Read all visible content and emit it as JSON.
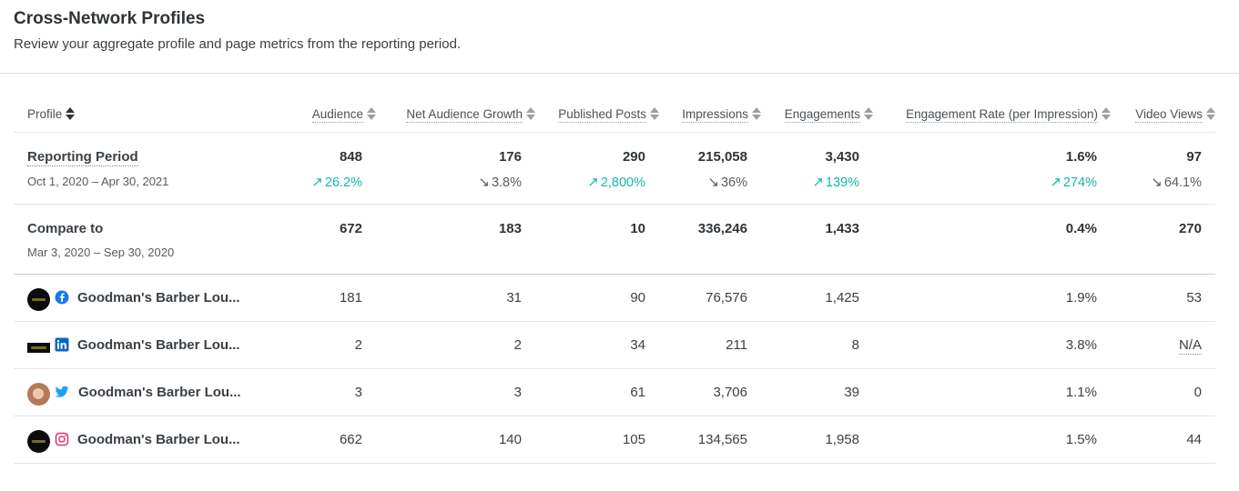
{
  "header": {
    "title": "Cross-Network Profiles",
    "subtitle": "Review your aggregate profile and page metrics from the reporting period."
  },
  "columns": [
    {
      "key": "profile",
      "label": "Profile"
    },
    {
      "key": "audience",
      "label": "Audience"
    },
    {
      "key": "growth",
      "label": "Net Audience Growth"
    },
    {
      "key": "posts",
      "label": "Published Posts"
    },
    {
      "key": "impressions",
      "label": "Impressions"
    },
    {
      "key": "engagements",
      "label": "Engagements"
    },
    {
      "key": "rate",
      "label": "Engagement Rate (per Impression)"
    },
    {
      "key": "video",
      "label": "Video Views"
    }
  ],
  "reporting": {
    "label": "Reporting Period",
    "date": "Oct 1, 2020 – Apr 30, 2021",
    "values": {
      "audience": "848",
      "growth": "176",
      "posts": "290",
      "impressions": "215,058",
      "engagements": "3,430",
      "rate": "1.6%",
      "video": "97"
    },
    "changes": {
      "audience": {
        "text": "26.2%",
        "dir": "up"
      },
      "growth": {
        "text": "3.8%",
        "dir": "down"
      },
      "posts": {
        "text": "2,800%",
        "dir": "up"
      },
      "impressions": {
        "text": "36%",
        "dir": "down"
      },
      "engagements": {
        "text": "139%",
        "dir": "up"
      },
      "rate": {
        "text": "274%",
        "dir": "up"
      },
      "video": {
        "text": "64.1%",
        "dir": "down"
      }
    }
  },
  "compare": {
    "label": "Compare to",
    "date": "Mar 3, 2020 – Sep 30, 2020",
    "values": {
      "audience": "672",
      "growth": "183",
      "posts": "10",
      "impressions": "336,246",
      "engagements": "1,433",
      "rate": "0.4%",
      "video": "270"
    }
  },
  "profiles": [
    {
      "network": "facebook-icon",
      "name": "Goodman's Barber Lou...",
      "values": {
        "audience": "181",
        "growth": "31",
        "posts": "90",
        "impressions": "76,576",
        "engagements": "1,425",
        "rate": "1.9%",
        "video": "53"
      }
    },
    {
      "network": "linkedin-icon",
      "name": "Goodman's Barber Lou...",
      "values": {
        "audience": "2",
        "growth": "2",
        "posts": "34",
        "impressions": "211",
        "engagements": "8",
        "rate": "3.8%",
        "video": "N/A"
      }
    },
    {
      "network": "twitter-icon",
      "name": "Goodman's Barber Lou...",
      "values": {
        "audience": "3",
        "growth": "3",
        "posts": "61",
        "impressions": "3,706",
        "engagements": "39",
        "rate": "1.1%",
        "video": "0"
      }
    },
    {
      "network": "instagram-icon",
      "name": "Goodman's Barber Lou...",
      "values": {
        "audience": "662",
        "growth": "140",
        "posts": "105",
        "impressions": "134,565",
        "engagements": "1,958",
        "rate": "1.5%",
        "video": "44"
      }
    }
  ],
  "colors": {
    "positive": "#14b8a6",
    "facebook": "#1877f2",
    "linkedin": "#0a66c2",
    "twitter": "#1da1f2",
    "instagram": "#e1306c"
  }
}
